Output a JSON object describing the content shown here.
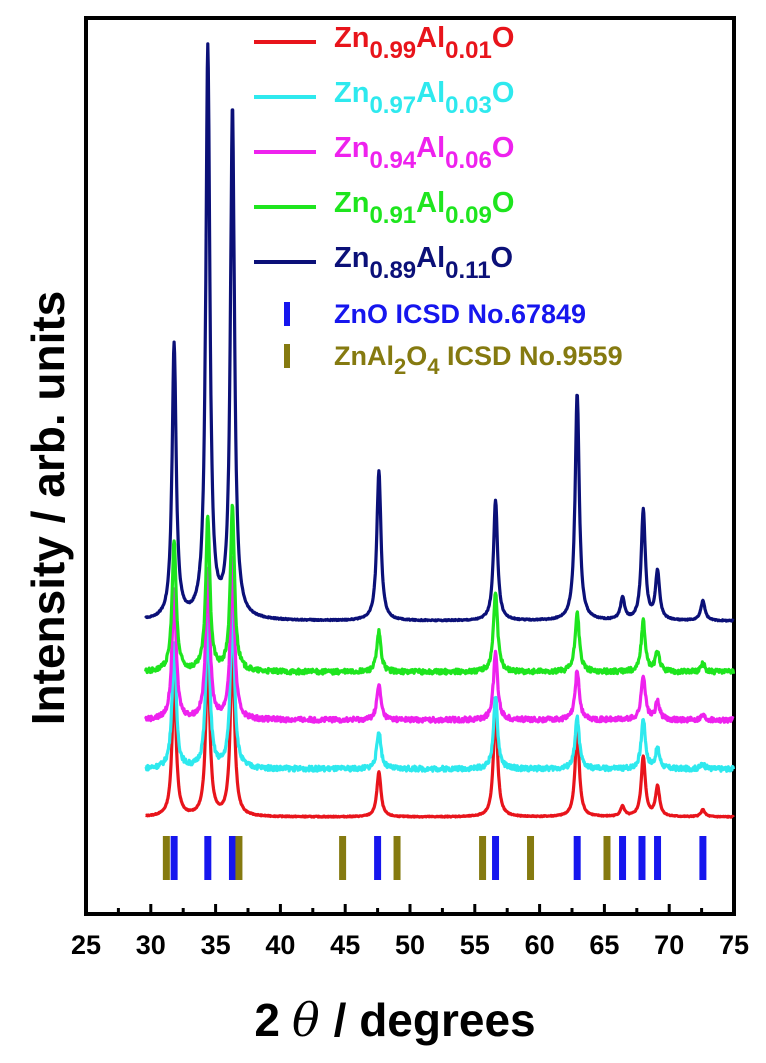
{
  "chart_data": {
    "type": "line",
    "xlabel_main": "2",
    "xlabel_symbol": "θ",
    "xlabel_unit": "/ degrees",
    "ylabel": "Intensity / arb. units",
    "xlim": [
      25,
      75
    ],
    "xticks": [
      25,
      30,
      35,
      40,
      45,
      50,
      55,
      60,
      65,
      70,
      75
    ],
    "grid": false,
    "legend_position": "top",
    "series": [
      {
        "name_parts": [
          "Zn",
          "0.99",
          "Al",
          "0.01",
          "O"
        ],
        "color": "#e8141b",
        "baseline": 0,
        "noise": 0.5,
        "peaks": [
          [
            31.8,
            135
          ],
          [
            34.4,
            160
          ],
          [
            36.3,
            170
          ],
          [
            47.6,
            45
          ],
          [
            56.6,
            110
          ],
          [
            62.9,
            90
          ],
          [
            66.4,
            10
          ],
          [
            68.0,
            60
          ],
          [
            69.1,
            30
          ],
          [
            72.6,
            7
          ]
        ]
      },
      {
        "name_parts": [
          "Zn",
          "0.97",
          "Al",
          "0.03",
          "O"
        ],
        "color": "#2ee9ee",
        "baseline": 48,
        "noise": 2.5,
        "peaks": [
          [
            31.8,
            125
          ],
          [
            34.4,
            150
          ],
          [
            36.3,
            165
          ],
          [
            47.6,
            38
          ],
          [
            56.6,
            72
          ],
          [
            62.9,
            52
          ],
          [
            68.0,
            50
          ],
          [
            69.1,
            20
          ],
          [
            72.6,
            5
          ]
        ]
      },
      {
        "name_parts": [
          "Zn",
          "0.94",
          "Al",
          "0.06",
          "O"
        ],
        "color": "#ee22ee",
        "baseline": 97,
        "noise": 2.5,
        "peaks": [
          [
            31.8,
            130
          ],
          [
            34.4,
            150
          ],
          [
            36.3,
            160
          ],
          [
            47.6,
            35
          ],
          [
            56.6,
            68
          ],
          [
            62.9,
            50
          ],
          [
            68.0,
            45
          ],
          [
            69.1,
            18
          ],
          [
            72.6,
            5
          ]
        ]
      },
      {
        "name_parts": [
          "Zn",
          "0.91",
          "Al",
          "0.09",
          "O"
        ],
        "color": "#1ee51e",
        "baseline": 145,
        "noise": 2.5,
        "peaks": [
          [
            31.8,
            130
          ],
          [
            34.4,
            155
          ],
          [
            36.3,
            165
          ],
          [
            47.6,
            40
          ],
          [
            56.6,
            80
          ],
          [
            62.9,
            60
          ],
          [
            68.0,
            50
          ],
          [
            69.1,
            20
          ],
          [
            72.6,
            8
          ]
        ]
      },
      {
        "name_parts": [
          "Zn",
          "0.89",
          "Al",
          "0.11",
          "O"
        ],
        "color": "#0b1078",
        "baseline": 196,
        "noise": 0.6,
        "peaks": [
          [
            31.8,
            275
          ],
          [
            34.4,
            570
          ],
          [
            36.3,
            510
          ],
          [
            47.6,
            150
          ],
          [
            56.6,
            120
          ],
          [
            62.9,
            228
          ],
          [
            66.4,
            22
          ],
          [
            68.0,
            110
          ],
          [
            69.1,
            48
          ],
          [
            72.6,
            20
          ]
        ]
      }
    ],
    "references": [
      {
        "label": "ZnO ICSD No.67849",
        "color": "#1616ee",
        "positions": [
          31.8,
          34.4,
          36.3,
          47.5,
          56.6,
          62.9,
          66.4,
          67.9,
          69.1,
          72.6
        ]
      },
      {
        "label_parts": [
          "ZnAl",
          "2",
          "O",
          "4",
          " ICSD No.9559"
        ],
        "color": "#857a10",
        "positions": [
          31.2,
          36.8,
          44.8,
          49.0,
          55.6,
          59.3,
          65.2
        ]
      }
    ]
  }
}
